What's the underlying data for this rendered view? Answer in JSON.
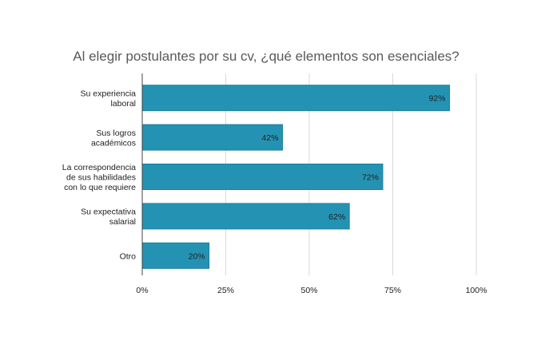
{
  "chart_data": {
    "type": "bar",
    "orientation": "horizontal",
    "title": "Al elegir postulantes por su cv, ¿qué elementos son esenciales?",
    "categories": [
      [
        "Su experiencia",
        "laboral"
      ],
      [
        "Sus logros",
        "académicos"
      ],
      [
        "La correspondencia",
        "de sus habilidades",
        "con lo que requiere"
      ],
      [
        "Su expectativa",
        "salarial"
      ],
      [
        "Otro"
      ]
    ],
    "values": [
      92,
      42,
      72,
      62,
      20
    ],
    "data_labels": [
      "92%",
      "42%",
      "72%",
      "62%",
      "20%"
    ],
    "xlim": [
      0,
      100
    ],
    "x_ticks": [
      0,
      25,
      50,
      75,
      100
    ],
    "x_tick_labels": [
      "0%",
      "25%",
      "50%",
      "75%",
      "100%"
    ],
    "grid": true,
    "colors": {
      "bar": "#2493b3",
      "bar_edge": "#1c7e99"
    }
  }
}
